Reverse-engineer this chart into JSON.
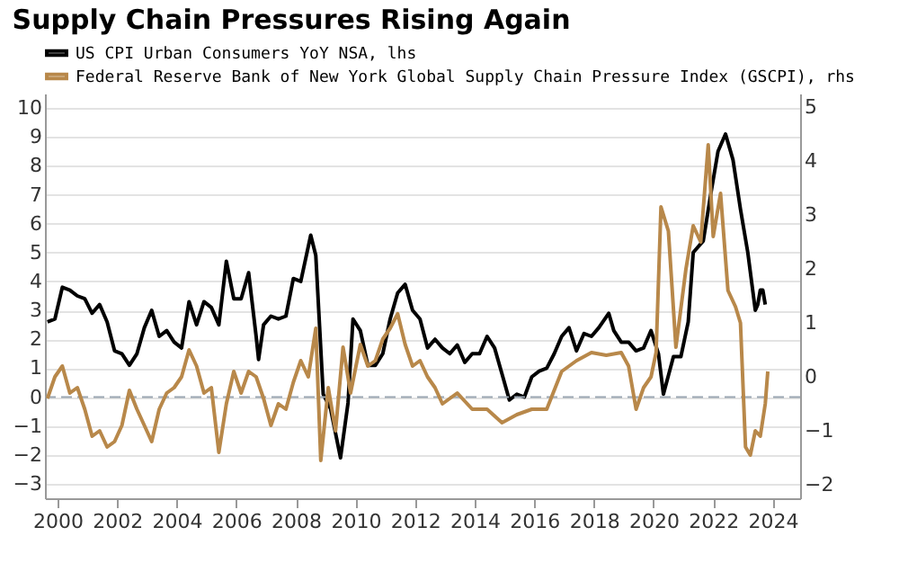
{
  "chart_data": {
    "type": "line",
    "title": "Supply Chain Pressures Rising Again",
    "xlim": [
      "1999-08",
      "2024-12"
    ],
    "xticks": [
      "2000",
      "2002",
      "2004",
      "2006",
      "2008",
      "2010",
      "2012",
      "2014",
      "2016",
      "2018",
      "2020",
      "2022",
      "2024"
    ],
    "ylim": [
      -3.5,
      10.5
    ],
    "yticks": [
      -3,
      -2,
      -1,
      0,
      1,
      2,
      3,
      4,
      5,
      6,
      7,
      8,
      9,
      10
    ],
    "y2lim": [
      -2.25,
      5.25
    ],
    "y2ticks": [
      -2,
      -1,
      0,
      1,
      2,
      3,
      4,
      5
    ],
    "grid": "y",
    "legend": "top",
    "line_style": "solid",
    "marker": "none",
    "ref_lines": [
      {
        "axis": "y",
        "value": 0,
        "label": null,
        "color": "#9aa5b1",
        "line_style": "dashed"
      }
    ],
    "series": [
      {
        "name": "US CPI Urban Consumers YoY NSA, lhs",
        "color": "#000000",
        "axis": "y",
        "x": [
          "1999-09",
          "1999-12",
          "2000-03",
          "2000-06",
          "2000-09",
          "2000-12",
          "2001-03",
          "2001-06",
          "2001-09",
          "2001-12",
          "2002-03",
          "2002-06",
          "2002-09",
          "2002-12",
          "2003-03",
          "2003-06",
          "2003-09",
          "2003-12",
          "2004-03",
          "2004-06",
          "2004-09",
          "2004-12",
          "2005-03",
          "2005-06",
          "2005-09",
          "2005-12",
          "2006-03",
          "2006-06",
          "2006-09",
          "2006-10",
          "2006-12",
          "2007-03",
          "2007-06",
          "2007-09",
          "2007-12",
          "2008-03",
          "2008-07",
          "2008-09",
          "2008-12",
          "2009-03",
          "2009-07",
          "2009-10",
          "2009-12",
          "2010-03",
          "2010-06",
          "2010-09",
          "2010-12",
          "2011-03",
          "2011-06",
          "2011-09",
          "2011-12",
          "2012-03",
          "2012-06",
          "2012-09",
          "2012-12",
          "2013-03",
          "2013-06",
          "2013-09",
          "2013-12",
          "2014-03",
          "2014-06",
          "2014-09",
          "2014-12",
          "2015-03",
          "2015-06",
          "2015-09",
          "2015-12",
          "2016-03",
          "2016-06",
          "2016-09",
          "2016-12",
          "2017-03",
          "2017-06",
          "2017-09",
          "2017-12",
          "2018-03",
          "2018-07",
          "2018-09",
          "2018-12",
          "2019-03",
          "2019-06",
          "2019-09",
          "2019-12",
          "2020-03",
          "2020-05",
          "2020-09",
          "2020-12",
          "2021-03",
          "2021-05",
          "2021-09",
          "2021-12",
          "2022-03",
          "2022-06",
          "2022-09",
          "2022-12",
          "2023-03",
          "2023-06",
          "2023-07",
          "2023-08",
          "2023-09",
          "2023-10"
        ],
        "values": [
          2.6,
          2.7,
          3.8,
          3.7,
          3.5,
          3.4,
          2.9,
          3.2,
          2.6,
          1.6,
          1.5,
          1.1,
          1.5,
          2.4,
          3.0,
          2.1,
          2.3,
          1.9,
          1.7,
          3.3,
          2.5,
          3.3,
          3.1,
          2.5,
          4.7,
          3.4,
          3.4,
          4.3,
          2.1,
          1.3,
          2.5,
          2.8,
          2.7,
          2.8,
          4.1,
          4.0,
          5.6,
          4.9,
          0.1,
          -0.4,
          -2.1,
          -0.2,
          2.7,
          2.3,
          1.1,
          1.1,
          1.5,
          2.7,
          3.6,
          3.9,
          3.0,
          2.7,
          1.7,
          2.0,
          1.7,
          1.5,
          1.8,
          1.2,
          1.5,
          1.5,
          2.1,
          1.7,
          0.8,
          -0.1,
          0.1,
          0.0,
          0.7,
          0.9,
          1.0,
          1.5,
          2.1,
          2.4,
          1.6,
          2.2,
          2.1,
          2.4,
          2.9,
          2.3,
          1.9,
          1.9,
          1.6,
          1.7,
          2.3,
          1.5,
          0.1,
          1.4,
          1.4,
          2.6,
          5.0,
          5.4,
          7.0,
          8.5,
          9.1,
          8.2,
          6.5,
          5.0,
          3.0,
          3.2,
          3.7,
          3.7,
          3.2
        ]
      },
      {
        "name": "Federal Reserve Bank of New York Global Supply Chain Pressure Index (GSCPI), rhs",
        "color": "#b8884a",
        "axis": "y2",
        "x": [
          "1999-09",
          "1999-12",
          "2000-03",
          "2000-06",
          "2000-09",
          "2000-12",
          "2001-03",
          "2001-06",
          "2001-09",
          "2001-12",
          "2002-03",
          "2002-06",
          "2002-09",
          "2002-12",
          "2003-03",
          "2003-06",
          "2003-09",
          "2003-12",
          "2004-03",
          "2004-06",
          "2004-09",
          "2004-12",
          "2005-03",
          "2005-06",
          "2005-09",
          "2005-12",
          "2006-03",
          "2006-06",
          "2006-09",
          "2006-12",
          "2007-03",
          "2007-06",
          "2007-09",
          "2007-12",
          "2008-03",
          "2008-06",
          "2008-09",
          "2008-11",
          "2009-02",
          "2009-05",
          "2009-08",
          "2009-11",
          "2010-03",
          "2010-06",
          "2010-09",
          "2010-12",
          "2011-03",
          "2011-06",
          "2011-09",
          "2011-12",
          "2012-03",
          "2012-06",
          "2012-09",
          "2012-12",
          "2013-06",
          "2013-12",
          "2014-06",
          "2014-12",
          "2015-06",
          "2015-12",
          "2016-06",
          "2016-12",
          "2017-06",
          "2017-12",
          "2018-06",
          "2018-12",
          "2019-03",
          "2019-06",
          "2019-09",
          "2019-12",
          "2020-02",
          "2020-04",
          "2020-07",
          "2020-10",
          "2021-02",
          "2021-05",
          "2021-08",
          "2021-11",
          "2022-01",
          "2022-04",
          "2022-07",
          "2022-10",
          "2022-12",
          "2023-02",
          "2023-04",
          "2023-06",
          "2023-08",
          "2023-10",
          "2023-11"
        ],
        "values": [
          -0.4,
          0.0,
          0.2,
          -0.3,
          -0.2,
          -0.6,
          -1.1,
          -1.0,
          -1.3,
          -1.2,
          -0.9,
          -0.25,
          -0.6,
          -0.9,
          -1.2,
          -0.6,
          -0.3,
          -0.2,
          0.0,
          0.5,
          0.2,
          -0.3,
          -0.2,
          -1.4,
          -0.5,
          0.1,
          -0.3,
          0.1,
          0.0,
          -0.4,
          -0.9,
          -0.5,
          -0.6,
          -0.1,
          0.3,
          0.0,
          0.9,
          -1.55,
          -0.2,
          -1.0,
          0.55,
          -0.3,
          0.6,
          0.2,
          0.3,
          0.7,
          0.9,
          1.17,
          0.6,
          0.2,
          0.3,
          0.0,
          -0.2,
          -0.5,
          -0.3,
          -0.6,
          -0.6,
          -0.85,
          -0.7,
          -0.6,
          -0.6,
          0.1,
          0.3,
          0.45,
          0.4,
          0.45,
          0.2,
          -0.6,
          -0.2,
          0.0,
          0.45,
          3.15,
          2.7,
          0.55,
          2.0,
          2.8,
          2.5,
          4.3,
          2.6,
          3.4,
          1.6,
          1.3,
          1.0,
          -1.3,
          -1.45,
          -1.0,
          -1.1,
          -0.5,
          0.1
        ]
      }
    ]
  }
}
